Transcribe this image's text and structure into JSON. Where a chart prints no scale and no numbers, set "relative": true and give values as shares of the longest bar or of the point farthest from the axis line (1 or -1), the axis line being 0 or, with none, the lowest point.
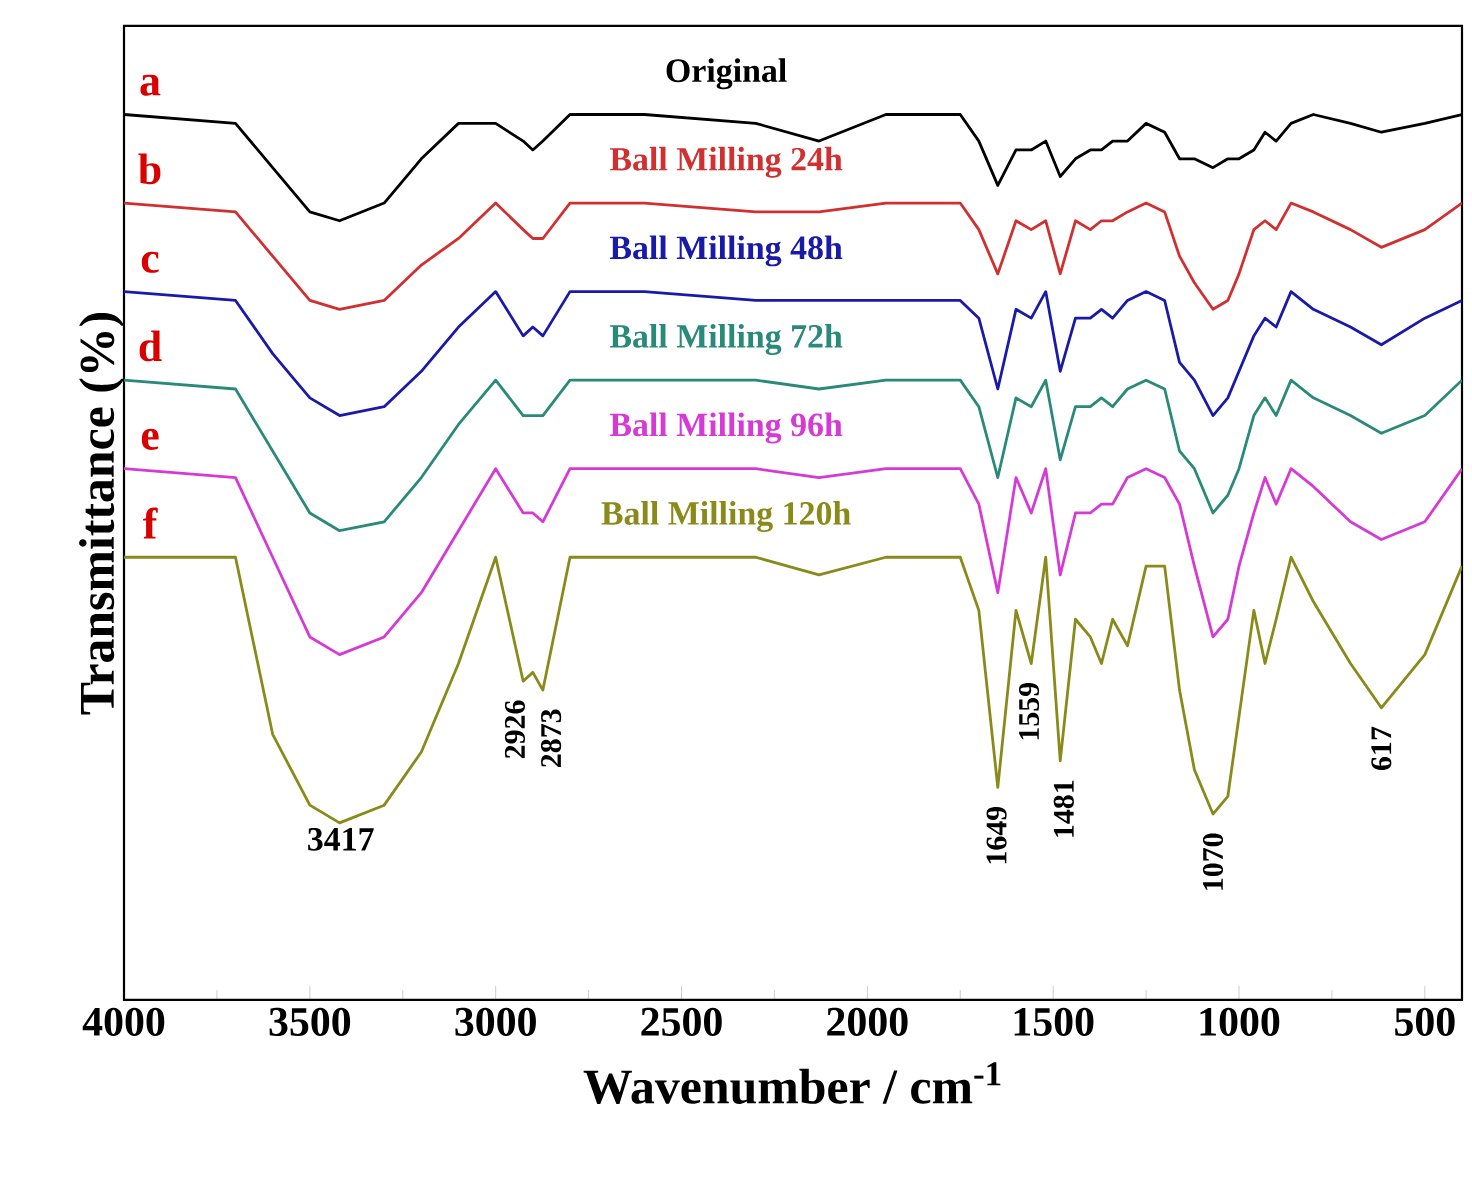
{
  "chart_data": {
    "type": "line",
    "relative": true,
    "xlabel": "Wavenumber / cm$^{-1}$",
    "ylabel": "Transmittance (%)",
    "xlim": [
      4000,
      400
    ],
    "xticks": [
      4000,
      3500,
      3000,
      2500,
      2000,
      1500,
      1000,
      500
    ],
    "tick_labels": "x",
    "legend": false,
    "grid": false,
    "x": [
      4000,
      3700,
      3600,
      3500,
      3420,
      3300,
      3200,
      3100,
      3000,
      2926,
      2900,
      2873,
      2800,
      2600,
      2300,
      2130,
      1950,
      1750,
      1700,
      1649,
      1600,
      1559,
      1520,
      1481,
      1440,
      1400,
      1370,
      1340,
      1300,
      1250,
      1200,
      1160,
      1120,
      1070,
      1030,
      1000,
      960,
      930,
      900,
      860,
      800,
      700,
      617,
      500,
      400
    ],
    "series": [
      {
        "name": "Original",
        "color": "#000000",
        "values": [
          1.0,
          0.99,
          0.94,
          0.89,
          0.88,
          0.9,
          0.95,
          0.99,
          0.99,
          0.97,
          0.96,
          0.97,
          1.0,
          1.0,
          0.99,
          0.97,
          1.0,
          1.0,
          0.97,
          0.92,
          0.96,
          0.96,
          0.97,
          0.93,
          0.95,
          0.96,
          0.96,
          0.97,
          0.97,
          0.99,
          0.98,
          0.95,
          0.95,
          0.94,
          0.95,
          0.95,
          0.96,
          0.98,
          0.97,
          0.99,
          1.0,
          0.99,
          0.98,
          0.99,
          1.0
        ]
      },
      {
        "name": "Ball Milling 24h",
        "color": "#d03030",
        "values": [
          0.9,
          0.89,
          0.84,
          0.79,
          0.78,
          0.79,
          0.83,
          0.86,
          0.9,
          0.87,
          0.86,
          0.86,
          0.9,
          0.9,
          0.89,
          0.89,
          0.9,
          0.9,
          0.87,
          0.82,
          0.88,
          0.87,
          0.88,
          0.82,
          0.88,
          0.87,
          0.88,
          0.88,
          0.89,
          0.9,
          0.89,
          0.84,
          0.81,
          0.78,
          0.79,
          0.82,
          0.87,
          0.88,
          0.87,
          0.9,
          0.89,
          0.87,
          0.85,
          0.87,
          0.9
        ]
      },
      {
        "name": "Ball Milling 48h",
        "color": "#1a1aa8",
        "values": [
          0.8,
          0.79,
          0.73,
          0.68,
          0.66,
          0.67,
          0.71,
          0.76,
          0.8,
          0.75,
          0.76,
          0.75,
          0.8,
          0.8,
          0.79,
          0.79,
          0.79,
          0.79,
          0.77,
          0.69,
          0.78,
          0.77,
          0.8,
          0.71,
          0.77,
          0.77,
          0.78,
          0.77,
          0.79,
          0.8,
          0.79,
          0.72,
          0.7,
          0.66,
          0.68,
          0.71,
          0.75,
          0.77,
          0.76,
          0.8,
          0.78,
          0.76,
          0.74,
          0.77,
          0.79
        ]
      },
      {
        "name": "Ball Milling 72h",
        "color": "#2a8a7a",
        "values": [
          0.7,
          0.69,
          0.62,
          0.55,
          0.53,
          0.54,
          0.59,
          0.65,
          0.7,
          0.66,
          0.66,
          0.66,
          0.7,
          0.7,
          0.7,
          0.69,
          0.7,
          0.7,
          0.67,
          0.59,
          0.68,
          0.67,
          0.7,
          0.61,
          0.67,
          0.67,
          0.68,
          0.67,
          0.69,
          0.7,
          0.69,
          0.62,
          0.6,
          0.55,
          0.57,
          0.6,
          0.66,
          0.68,
          0.66,
          0.7,
          0.68,
          0.66,
          0.64,
          0.66,
          0.7
        ]
      },
      {
        "name": "Ball Milling 96h",
        "color": "#d63ad6",
        "values": [
          0.6,
          0.59,
          0.5,
          0.41,
          0.39,
          0.41,
          0.46,
          0.53,
          0.6,
          0.55,
          0.55,
          0.54,
          0.6,
          0.6,
          0.6,
          0.59,
          0.6,
          0.6,
          0.56,
          0.46,
          0.59,
          0.55,
          0.6,
          0.48,
          0.55,
          0.55,
          0.56,
          0.56,
          0.59,
          0.6,
          0.59,
          0.56,
          0.49,
          0.41,
          0.43,
          0.49,
          0.55,
          0.59,
          0.56,
          0.6,
          0.58,
          0.54,
          0.52,
          0.54,
          0.6
        ]
      },
      {
        "name": "Ball Milling 120h",
        "color": "#8a8a1a",
        "values": [
          0.5,
          0.5,
          0.3,
          0.22,
          0.2,
          0.22,
          0.28,
          0.38,
          0.5,
          0.36,
          0.37,
          0.35,
          0.5,
          0.5,
          0.5,
          0.48,
          0.5,
          0.5,
          0.44,
          0.24,
          0.44,
          0.38,
          0.5,
          0.27,
          0.43,
          0.41,
          0.38,
          0.43,
          0.4,
          0.49,
          0.49,
          0.35,
          0.26,
          0.21,
          0.23,
          0.32,
          0.44,
          0.38,
          0.43,
          0.5,
          0.45,
          0.38,
          0.33,
          0.39,
          0.49
        ]
      }
    ],
    "annotations": [
      "a",
      "b",
      "c",
      "d",
      "e",
      "f",
      {
        "text": "3417",
        "x": 3417,
        "y": 0.2
      },
      {
        "text": "2926",
        "x": 2926,
        "y": 0.36
      },
      {
        "text": "2873",
        "x": 2873,
        "y": 0.35
      },
      {
        "text": "1649",
        "x": 1649,
        "y": 0.24
      },
      {
        "text": "1559",
        "x": 1559,
        "y": 0.38
      },
      {
        "text": "1481",
        "x": 1481,
        "y": 0.27
      },
      {
        "text": "1070",
        "x": 1070,
        "y": 0.21
      },
      {
        "text": "617",
        "x": 617,
        "y": 0.33
      }
    ]
  }
}
